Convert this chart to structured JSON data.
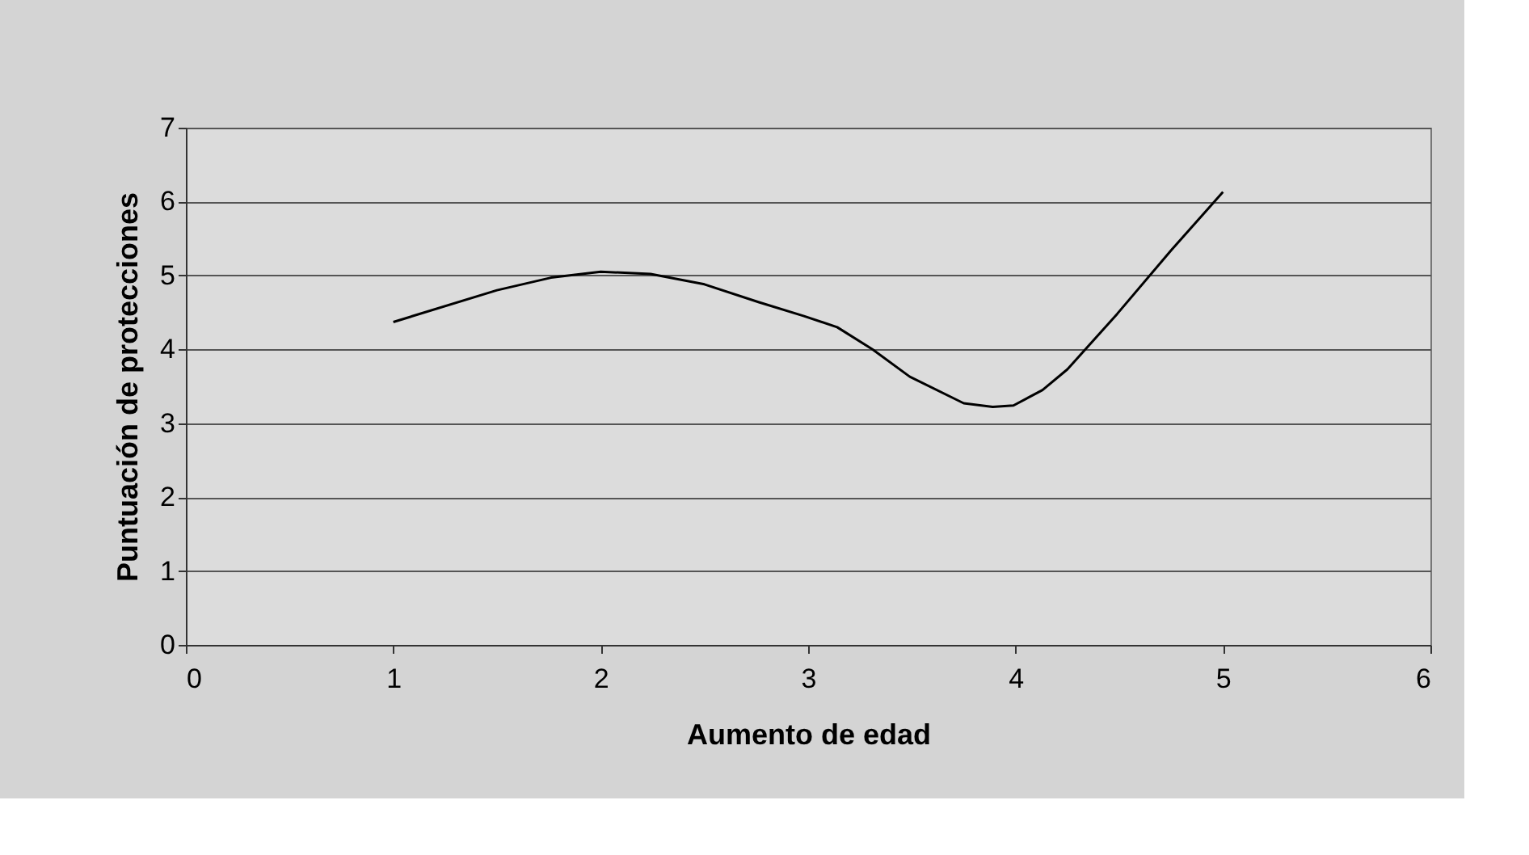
{
  "chart_data": {
    "type": "line",
    "xlabel": "Aumento de edad",
    "ylabel": "Puntuación de protecciones",
    "x": [
      1,
      1.5,
      1.76,
      2,
      2.24,
      2.5,
      2.76,
      2.98,
      3.14,
      3.31,
      3.49,
      3.75,
      3.89,
      3.99,
      4.13,
      4.25,
      4.49,
      4.75,
      5.0
    ],
    "series": [
      {
        "color": "#000000",
        "values": [
          4.37,
          4.8,
          4.97,
          5.05,
          5.02,
          4.88,
          4.64,
          4.45,
          4.3,
          4.0,
          3.63,
          3.27,
          3.22,
          3.24,
          3.45,
          3.73,
          4.48,
          5.34,
          6.13
        ]
      }
    ],
    "xlim": [
      0,
      6
    ],
    "xticks": [
      0,
      1,
      2,
      3,
      4,
      5,
      6
    ],
    "ylim": [
      0,
      7
    ],
    "yticks": [
      0,
      1,
      2,
      3,
      4,
      5,
      6,
      7
    ],
    "grid": "y",
    "marker": "none",
    "line_style": "solid"
  }
}
